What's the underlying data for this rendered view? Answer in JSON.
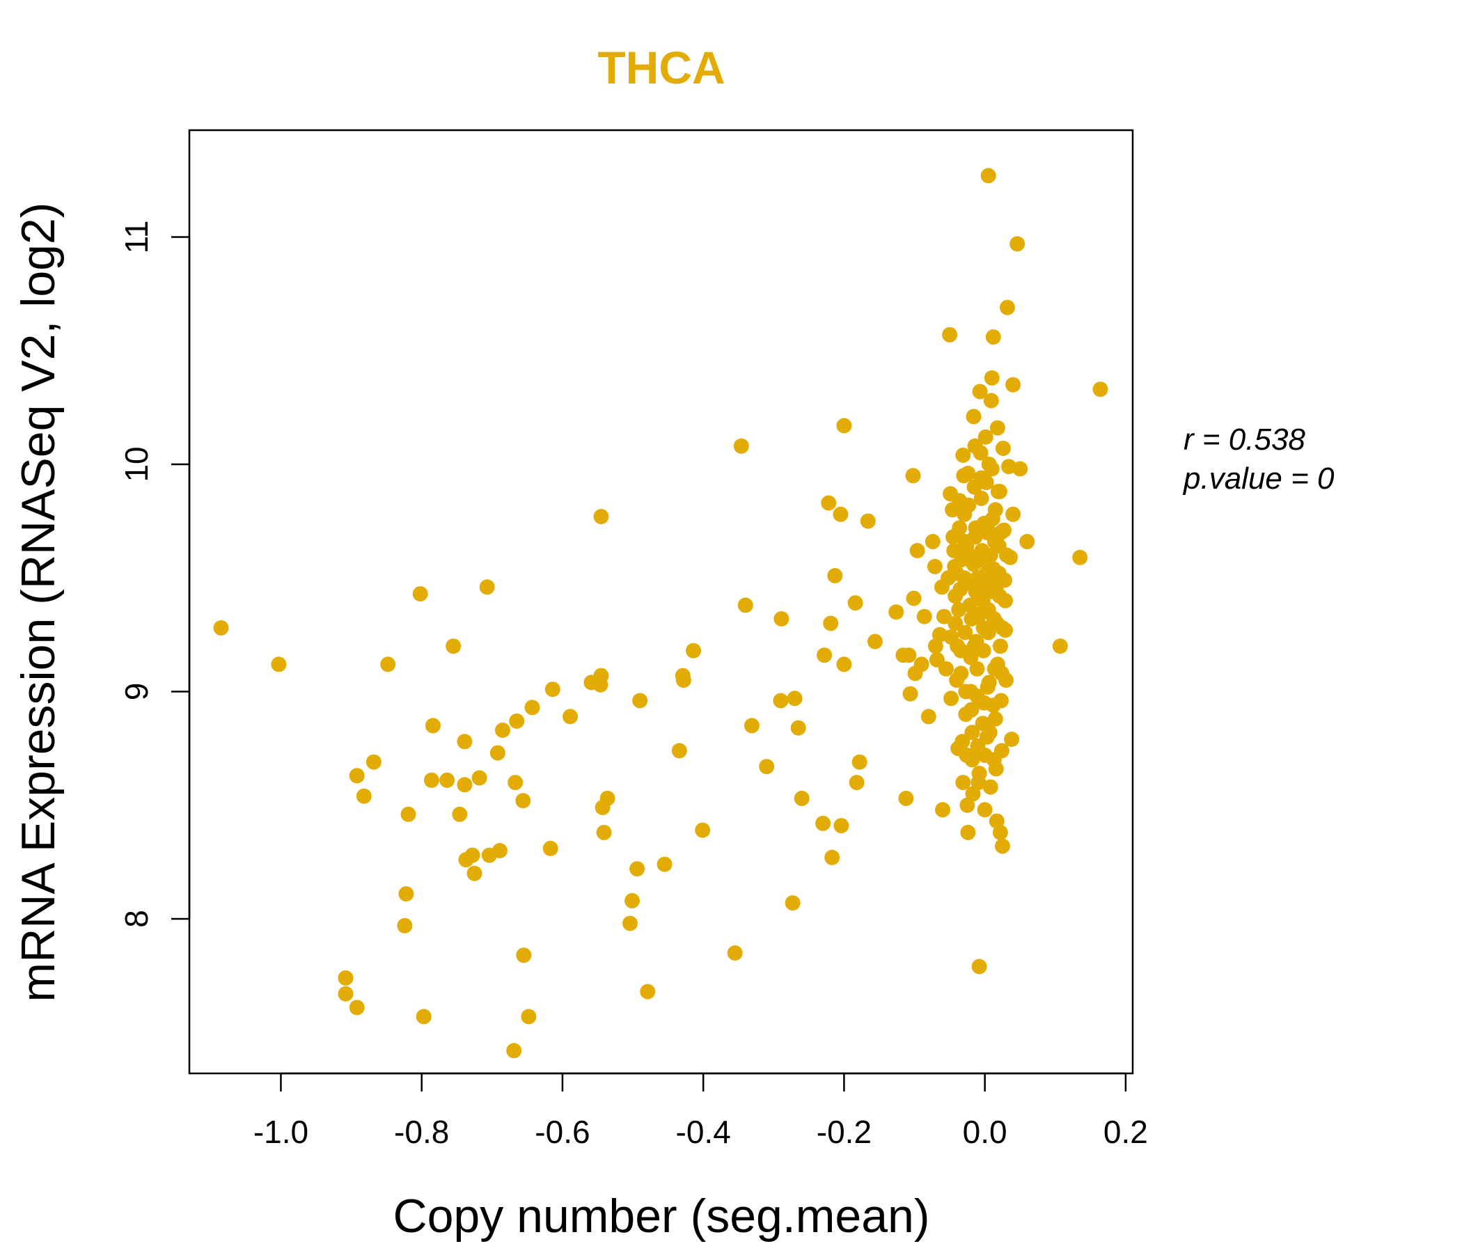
{
  "chart_data": {
    "type": "scatter",
    "title": "THCA",
    "xlabel": "Copy number (seg.mean)",
    "ylabel": "mRNA Expression (RNASeq V2, log2)",
    "xlim": [
      -1.13,
      0.21
    ],
    "ylim": [
      7.32,
      11.47
    ],
    "xticks": [
      -1.0,
      -0.8,
      -0.6,
      -0.4,
      -0.2,
      0.0,
      0.2
    ],
    "xtick_labels": [
      "-1.0",
      "-0.8",
      "-0.6",
      "-0.4",
      "-0.2",
      "0.0",
      "0.2"
    ],
    "yticks": [
      8,
      9,
      10,
      11
    ],
    "ytick_labels": [
      "8",
      "9",
      "10",
      "11"
    ],
    "grid": false,
    "point_color": "#E3AC05",
    "title_color": "#E3AC05",
    "stats": {
      "r_label": "r = 0.538",
      "p_label": "p.value = 0"
    },
    "points": [
      [
        -1.085,
        9.28
      ],
      [
        -1.003,
        9.12
      ],
      [
        -0.908,
        7.74
      ],
      [
        -0.908,
        7.67
      ],
      [
        -0.892,
        7.61
      ],
      [
        -0.892,
        8.63
      ],
      [
        -0.882,
        8.54
      ],
      [
        -0.868,
        8.69
      ],
      [
        -0.848,
        9.12
      ],
      [
        -0.824,
        7.97
      ],
      [
        -0.822,
        8.11
      ],
      [
        -0.819,
        8.46
      ],
      [
        -0.802,
        9.43
      ],
      [
        -0.797,
        7.57
      ],
      [
        -0.786,
        8.61
      ],
      [
        -0.784,
        8.85
      ],
      [
        -0.764,
        8.61
      ],
      [
        -0.755,
        9.2
      ],
      [
        -0.746,
        8.46
      ],
      [
        -0.739,
        8.78
      ],
      [
        -0.739,
        8.59
      ],
      [
        -0.737,
        8.26
      ],
      [
        -0.728,
        8.28
      ],
      [
        -0.725,
        8.2
      ],
      [
        -0.718,
        8.62
      ],
      [
        -0.707,
        9.46
      ],
      [
        -0.704,
        8.28
      ],
      [
        -0.689,
        8.3
      ],
      [
        -0.692,
        8.73
      ],
      [
        -0.685,
        8.83
      ],
      [
        -0.669,
        7.42
      ],
      [
        -0.667,
        8.6
      ],
      [
        -0.665,
        8.87
      ],
      [
        -0.656,
        8.52
      ],
      [
        -0.655,
        7.84
      ],
      [
        -0.648,
        7.57
      ],
      [
        -0.643,
        8.93
      ],
      [
        -0.617,
        8.31
      ],
      [
        -0.614,
        9.01
      ],
      [
        -0.589,
        8.89
      ],
      [
        -0.559,
        9.04
      ],
      [
        -0.546,
        9.03
      ],
      [
        -0.545,
        9.07
      ],
      [
        -0.545,
        9.77
      ],
      [
        -0.543,
        8.49
      ],
      [
        -0.541,
        8.38
      ],
      [
        -0.536,
        8.53
      ],
      [
        -0.504,
        7.98
      ],
      [
        -0.501,
        8.08
      ],
      [
        -0.494,
        8.22
      ],
      [
        -0.49,
        8.96
      ],
      [
        -0.479,
        7.68
      ],
      [
        -0.455,
        8.24
      ],
      [
        -0.434,
        8.74
      ],
      [
        -0.429,
        9.07
      ],
      [
        -0.428,
        9.05
      ],
      [
        -0.414,
        9.18
      ],
      [
        -0.401,
        8.39
      ],
      [
        -0.355,
        7.85
      ],
      [
        -0.346,
        10.08
      ],
      [
        -0.34,
        9.38
      ],
      [
        -0.331,
        8.85
      ],
      [
        -0.31,
        8.67
      ],
      [
        -0.29,
        8.96
      ],
      [
        -0.289,
        9.32
      ],
      [
        -0.273,
        8.07
      ],
      [
        -0.27,
        8.97
      ],
      [
        -0.265,
        8.84
      ],
      [
        -0.26,
        8.53
      ],
      [
        -0.23,
        8.42
      ],
      [
        -0.228,
        9.16
      ],
      [
        -0.222,
        9.83
      ],
      [
        -0.219,
        9.3
      ],
      [
        -0.217,
        8.27
      ],
      [
        -0.213,
        9.51
      ],
      [
        -0.205,
        9.78
      ],
      [
        -0.204,
        8.41
      ],
      [
        -0.2,
        10.17
      ],
      [
        -0.2,
        9.12
      ],
      [
        -0.184,
        9.39
      ],
      [
        -0.182,
        8.6
      ],
      [
        -0.178,
        8.69
      ],
      [
        -0.166,
        9.75
      ],
      [
        -0.156,
        9.22
      ],
      [
        -0.126,
        9.35
      ],
      [
        -0.116,
        9.16
      ],
      [
        -0.112,
        8.53
      ],
      [
        -0.108,
        9.16
      ],
      [
        -0.106,
        8.99
      ],
      [
        -0.102,
        9.95
      ],
      [
        -0.101,
        9.41
      ],
      [
        -0.099,
        9.08
      ],
      [
        -0.096,
        9.62
      ],
      [
        -0.09,
        9.12
      ],
      [
        -0.086,
        9.33
      ],
      [
        -0.08,
        8.89
      ],
      [
        -0.074,
        9.66
      ],
      [
        -0.071,
        9.55
      ],
      [
        -0.07,
        9.2
      ],
      [
        -0.068,
        9.14
      ],
      [
        -0.064,
        9.25
      ],
      [
        -0.061,
        9.46
      ],
      [
        -0.06,
        8.48
      ],
      [
        -0.058,
        9.33
      ],
      [
        -0.055,
        9.1
      ],
      [
        -0.05,
        10.57
      ],
      [
        -0.049,
        9.87
      ],
      [
        -0.048,
        8.97
      ],
      [
        -0.046,
        9.8
      ],
      [
        -0.044,
        9.62
      ],
      [
        -0.043,
        9.55
      ],
      [
        -0.042,
        9.3
      ],
      [
        -0.04,
        9.05
      ],
      [
        -0.038,
        8.75
      ],
      [
        -0.036,
        9.72
      ],
      [
        -0.035,
        9.45
      ],
      [
        -0.034,
        9.18
      ],
      [
        -0.032,
        8.78
      ],
      [
        -0.031,
        10.04
      ],
      [
        -0.03,
        9.95
      ],
      [
        -0.029,
        9.5
      ],
      [
        -0.028,
        9.26
      ],
      [
        -0.027,
        9.0
      ],
      [
        -0.026,
        8.72
      ],
      [
        -0.025,
        8.5
      ],
      [
        -0.024,
        8.38
      ],
      [
        -0.023,
        9.82
      ],
      [
        -0.022,
        9.6
      ],
      [
        -0.021,
        9.38
      ],
      [
        -0.02,
        9.15
      ],
      [
        -0.019,
        8.92
      ],
      [
        -0.018,
        8.7
      ],
      [
        -0.017,
        8.55
      ],
      [
        -0.016,
        10.21
      ],
      [
        -0.015,
        9.9
      ],
      [
        -0.014,
        9.68
      ],
      [
        -0.013,
        9.44
      ],
      [
        -0.012,
        9.22
      ],
      [
        -0.011,
        8.98
      ],
      [
        -0.01,
        8.76
      ],
      [
        -0.009,
        8.6
      ],
      [
        -0.008,
        7.79
      ],
      [
        -0.007,
        10.32
      ],
      [
        -0.006,
        10.05
      ],
      [
        -0.005,
        9.85
      ],
      [
        -0.004,
        9.62
      ],
      [
        -0.003,
        9.4
      ],
      [
        -0.002,
        9.18
      ],
      [
        -0.001,
        8.95
      ],
      [
        0.0,
        8.72
      ],
      [
        0.0,
        8.48
      ],
      [
        0.001,
        10.12
      ],
      [
        0.002,
        9.92
      ],
      [
        0.003,
        9.7
      ],
      [
        0.004,
        9.48
      ],
      [
        0.005,
        9.26
      ],
      [
        0.006,
        9.04
      ],
      [
        0.007,
        8.82
      ],
      [
        0.008,
        8.58
      ],
      [
        0.009,
        10.28
      ],
      [
        0.005,
        11.27
      ],
      [
        0.01,
        10.38
      ],
      [
        0.01,
        9.98
      ],
      [
        0.011,
        9.76
      ],
      [
        0.012,
        9.54
      ],
      [
        0.013,
        9.32
      ],
      [
        0.014,
        9.1
      ],
      [
        0.015,
        8.88
      ],
      [
        0.016,
        8.66
      ],
      [
        0.017,
        8.43
      ],
      [
        0.012,
        10.56
      ],
      [
        0.018,
        10.16
      ],
      [
        0.019,
        9.88
      ],
      [
        0.02,
        9.64
      ],
      [
        0.021,
        9.42
      ],
      [
        0.022,
        9.2
      ],
      [
        0.023,
        8.96
      ],
      [
        0.024,
        8.74
      ],
      [
        0.025,
        8.32
      ],
      [
        0.022,
        8.38
      ],
      [
        0.026,
        10.07
      ],
      [
        0.027,
        9.71
      ],
      [
        0.028,
        9.49
      ],
      [
        0.029,
        9.27
      ],
      [
        0.03,
        9.05
      ],
      [
        0.031,
        9.6
      ],
      [
        0.032,
        10.69
      ],
      [
        0.034,
        9.99
      ],
      [
        0.036,
        9.59
      ],
      [
        0.04,
        10.35
      ],
      [
        0.04,
        9.78
      ],
      [
        0.038,
        8.79
      ],
      [
        0.046,
        10.97
      ],
      [
        0.05,
        9.98
      ],
      [
        0.06,
        9.66
      ],
      [
        0.107,
        9.2
      ],
      [
        0.135,
        9.59
      ],
      [
        0.164,
        10.33
      ],
      [
        -0.045,
        9.68
      ],
      [
        -0.04,
        9.52
      ],
      [
        -0.037,
        9.36
      ],
      [
        -0.033,
        9.58
      ],
      [
        -0.029,
        9.78
      ],
      [
        -0.026,
        9.64
      ],
      [
        -0.022,
        9.48
      ],
      [
        -0.019,
        9.32
      ],
      [
        -0.016,
        9.56
      ],
      [
        -0.013,
        9.72
      ],
      [
        -0.01,
        9.5
      ],
      [
        -0.007,
        9.34
      ],
      [
        -0.004,
        9.58
      ],
      [
        -0.001,
        9.74
      ],
      [
        0.002,
        9.52
      ],
      [
        0.005,
        9.36
      ],
      [
        0.008,
        9.6
      ],
      [
        0.011,
        9.44
      ],
      [
        0.014,
        9.66
      ],
      [
        0.017,
        9.3
      ],
      [
        0.02,
        9.52
      ],
      [
        -0.034,
        9.08
      ],
      [
        -0.027,
        8.9
      ],
      [
        -0.02,
        9.0
      ],
      [
        -0.011,
        9.1
      ],
      [
        -0.003,
        8.86
      ],
      [
        0.004,
        9.02
      ],
      [
        0.012,
        8.94
      ],
      [
        0.018,
        9.12
      ],
      [
        0.025,
        9.28
      ],
      [
        -0.042,
        9.42
      ],
      [
        -0.036,
        9.84
      ],
      [
        -0.024,
        9.96
      ],
      [
        -0.014,
        10.08
      ],
      [
        -0.005,
        9.94
      ],
      [
        0.006,
        10.0
      ],
      [
        0.015,
        9.8
      ],
      [
        0.023,
        9.7
      ],
      [
        0.029,
        9.4
      ],
      [
        -0.048,
        9.24
      ],
      [
        -0.031,
        8.6
      ],
      [
        -0.018,
        8.82
      ],
      [
        -0.008,
        8.64
      ],
      [
        0.003,
        8.8
      ],
      [
        0.013,
        8.7
      ],
      [
        -0.052,
        9.5
      ],
      [
        -0.039,
        9.2
      ],
      [
        -0.028,
        9.66
      ],
      [
        -0.015,
        9.2
      ],
      [
        -0.002,
        9.28
      ],
      [
        0.007,
        9.7
      ],
      [
        0.016,
        9.46
      ],
      [
        0.021,
        9.88
      ],
      [
        0.024,
        9.08
      ],
      [
        0.001,
        9.46
      ]
    ]
  }
}
